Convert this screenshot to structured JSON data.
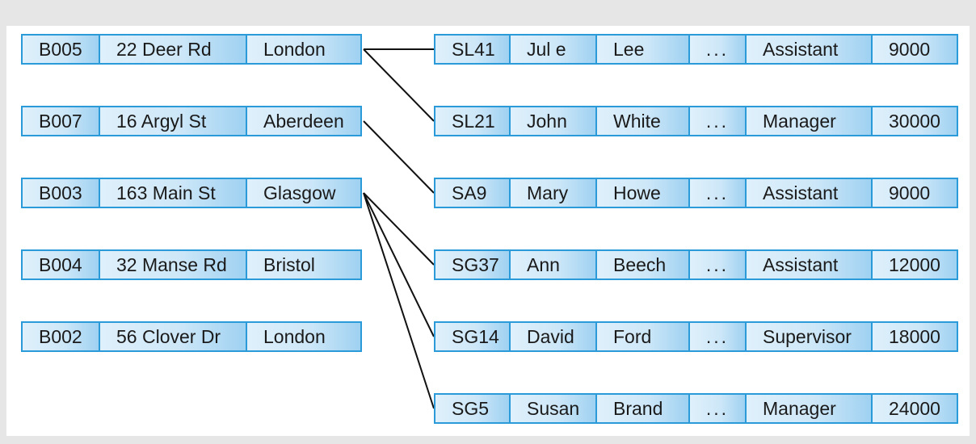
{
  "branches": [
    [
      "B005",
      "22 Deer Rd",
      "London"
    ],
    [
      "B007",
      "16 Argyl  St",
      "Aberdeen"
    ],
    [
      "B003",
      "163 Main St",
      "Glasgow"
    ],
    [
      "B004",
      "32 Manse Rd",
      "Bristol"
    ],
    [
      "B002",
      "56 Clover Dr",
      "London"
    ]
  ],
  "staff": [
    [
      "SL41",
      "Jul e",
      "Lee",
      "...",
      "Assistant",
      "9000"
    ],
    [
      "SL21",
      "John",
      "White",
      "...",
      "Manager",
      "30000"
    ],
    [
      "SA9",
      "Mary",
      "Howe",
      "...",
      "Assistant",
      "9000"
    ],
    [
      "SG37",
      "Ann",
      "Beech",
      "...",
      "Assistant",
      "12000"
    ],
    [
      "SG14",
      "David",
      "Ford",
      "...",
      "Supervisor",
      "18000"
    ],
    [
      "SG5",
      "Susan",
      "Brand",
      "...",
      "Manager",
      "24000"
    ]
  ],
  "links": [
    [
      0,
      0
    ],
    [
      0,
      1
    ],
    [
      1,
      2
    ],
    [
      2,
      3
    ],
    [
      2,
      4
    ],
    [
      2,
      5
    ]
  ],
  "colors": {
    "border": "#2a9ad8",
    "line": "#111111",
    "background": "#e6e6e6"
  }
}
